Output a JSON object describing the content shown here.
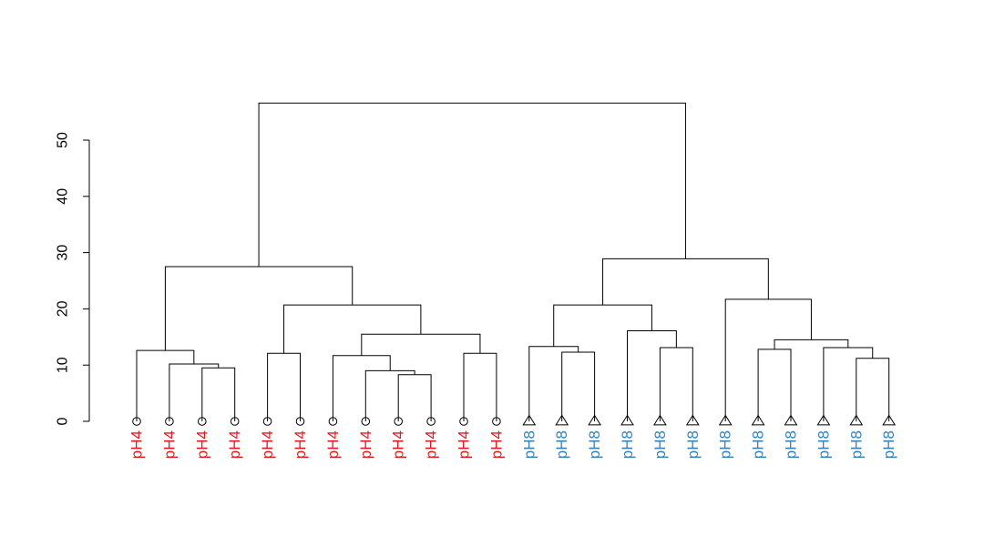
{
  "chart_data": {
    "type": "dendrogram",
    "title": "",
    "xlabel": "",
    "ylabel": "",
    "ylim": [
      0,
      57
    ],
    "yticks": [
      0,
      10,
      20,
      30,
      40,
      50
    ],
    "leaves": [
      {
        "label": "pH4",
        "group": "pH4"
      },
      {
        "label": "pH4",
        "group": "pH4"
      },
      {
        "label": "pH4",
        "group": "pH4"
      },
      {
        "label": "pH4",
        "group": "pH4"
      },
      {
        "label": "pH4",
        "group": "pH4"
      },
      {
        "label": "pH4",
        "group": "pH4"
      },
      {
        "label": "pH4",
        "group": "pH4"
      },
      {
        "label": "pH4",
        "group": "pH4"
      },
      {
        "label": "pH4",
        "group": "pH4"
      },
      {
        "label": "pH4",
        "group": "pH4"
      },
      {
        "label": "pH4",
        "group": "pH4"
      },
      {
        "label": "pH4",
        "group": "pH4"
      },
      {
        "label": "pH8",
        "group": "pH8"
      },
      {
        "label": "pH8",
        "group": "pH8"
      },
      {
        "label": "pH8",
        "group": "pH8"
      },
      {
        "label": "pH8",
        "group": "pH8"
      },
      {
        "label": "pH8",
        "group": "pH8"
      },
      {
        "label": "pH8",
        "group": "pH8"
      },
      {
        "label": "pH8",
        "group": "pH8"
      },
      {
        "label": "pH8",
        "group": "pH8"
      },
      {
        "label": "pH8",
        "group": "pH8"
      },
      {
        "label": "pH8",
        "group": "pH8"
      },
      {
        "label": "pH8",
        "group": "pH8"
      },
      {
        "label": "pH8",
        "group": "pH8"
      }
    ],
    "groups": {
      "pH4": {
        "color": "#e31a1c",
        "marker": "circle"
      },
      "pH8": {
        "color": "#3182bd",
        "marker": "triangle"
      }
    },
    "merges": [
      {
        "left": "L2",
        "right": "L3",
        "height": 9.5
      },
      {
        "left": "L1",
        "right": "M1",
        "height": 10.2
      },
      {
        "left": "L0",
        "right": "M2",
        "height": 12.6
      },
      {
        "left": "L4",
        "right": "L5",
        "height": 12.1
      },
      {
        "left": "L8",
        "right": "L9",
        "height": 8.3
      },
      {
        "left": "L7",
        "right": "M5",
        "height": 9.0
      },
      {
        "left": "L6",
        "right": "M6",
        "height": 11.7
      },
      {
        "left": "L10",
        "right": "L11",
        "height": 12.1
      },
      {
        "left": "M7",
        "right": "M8",
        "height": 15.5
      },
      {
        "left": "M4",
        "right": "M9",
        "height": 20.7
      },
      {
        "left": "M3",
        "right": "M10",
        "height": 27.5
      },
      {
        "left": "L13",
        "right": "L14",
        "height": 12.3
      },
      {
        "left": "L12",
        "right": "M12",
        "height": 13.3
      },
      {
        "left": "L16",
        "right": "L17",
        "height": 13.1
      },
      {
        "left": "L15",
        "right": "M14",
        "height": 16.1
      },
      {
        "left": "M13",
        "right": "M15",
        "height": 20.7
      },
      {
        "left": "L19",
        "right": "L20",
        "height": 12.8
      },
      {
        "left": "L22",
        "right": "L23",
        "height": 11.2
      },
      {
        "left": "L21",
        "right": "M18",
        "height": 13.1
      },
      {
        "left": "M17",
        "right": "M19",
        "height": 14.5
      },
      {
        "left": "L18",
        "right": "M20",
        "height": 21.7
      },
      {
        "left": "M16",
        "right": "M21",
        "height": 28.9
      },
      {
        "left": "M11",
        "right": "M22",
        "height": 56.6
      }
    ]
  }
}
